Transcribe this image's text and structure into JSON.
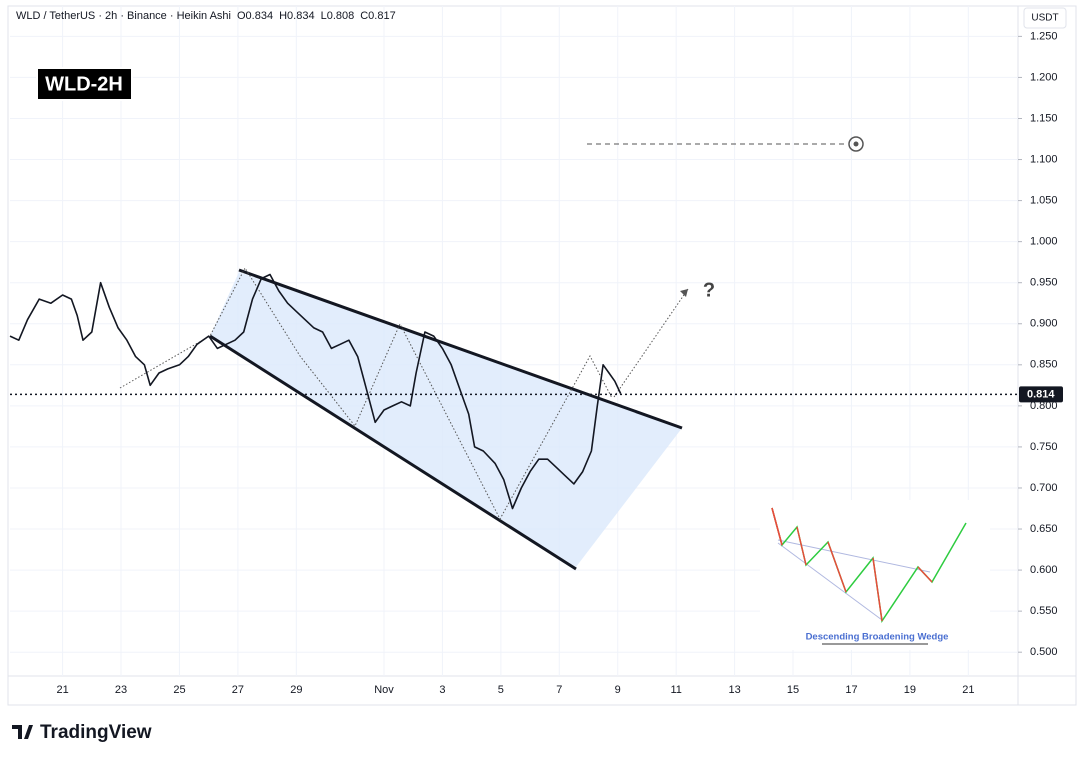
{
  "chart_data": {
    "type": "line",
    "header": {
      "symbol": "WLD / TetherUS · 2h · Binance · Heikin Ashi",
      "open": "O0.834",
      "high": "H0.834",
      "low": "L0.808",
      "close": "C0.817"
    },
    "badge": "WLD-2H",
    "currency": "USDT",
    "last_price": 0.814,
    "last_price_label": "0.814",
    "annotation": "?",
    "inset_title": "Descending Broadening Wedge",
    "brand": "TradingView",
    "color": "#131722",
    "xlim": [
      -1.8,
      32.7
    ],
    "ylim": [
      0.471,
      1.287
    ],
    "xticks": [
      {
        "value": 0,
        "label": "21"
      },
      {
        "value": 2,
        "label": "23"
      },
      {
        "value": 4,
        "label": "25"
      },
      {
        "value": 6,
        "label": "27"
      },
      {
        "value": 8,
        "label": "29"
      },
      {
        "value": 11,
        "label": "Nov"
      },
      {
        "value": 13,
        "label": "3"
      },
      {
        "value": 15,
        "label": "5"
      },
      {
        "value": 17,
        "label": "7"
      },
      {
        "value": 19,
        "label": "9"
      },
      {
        "value": 21,
        "label": "11"
      },
      {
        "value": 23,
        "label": "13"
      },
      {
        "value": 25,
        "label": "15"
      },
      {
        "value": 27,
        "label": "17"
      },
      {
        "value": 29,
        "label": "19"
      },
      {
        "value": 31,
        "label": "21"
      }
    ],
    "yticks": [
      {
        "value": 1.25,
        "label": "1.250"
      },
      {
        "value": 1.2,
        "label": "1.200"
      },
      {
        "value": 1.15,
        "label": "1.150"
      },
      {
        "value": 1.1,
        "label": "1.100"
      },
      {
        "value": 1.05,
        "label": "1.050"
      },
      {
        "value": 1,
        "label": "1.000"
      },
      {
        "value": 0.95,
        "label": "0.950"
      },
      {
        "value": 0.9,
        "label": "0.900"
      },
      {
        "value": 0.85,
        "label": "0.850"
      },
      {
        "value": 0.8,
        "label": "0.800"
      },
      {
        "value": 0.75,
        "label": "0.750"
      },
      {
        "value": 0.7,
        "label": "0.700"
      },
      {
        "value": 0.65,
        "label": "0.650"
      },
      {
        "value": 0.6,
        "label": "0.600"
      },
      {
        "value": 0.55,
        "label": "0.550"
      },
      {
        "value": 0.5,
        "label": "0.500"
      }
    ],
    "x": [
      -1.8,
      -1.5,
      -1.2,
      -0.8,
      -0.4,
      0,
      0.3,
      0.5,
      0.7,
      1,
      1.3,
      1.6,
      1.9,
      2.2,
      2.5,
      2.8,
      3,
      3.3,
      3.6,
      4,
      4.3,
      4.6,
      5,
      5.3,
      5.6,
      5.9,
      6.2,
      6.5,
      6.8,
      7.1,
      7.4,
      7.7,
      8,
      8.3,
      8.6,
      8.9,
      9.2,
      9.5,
      9.8,
      10.1,
      10.4,
      10.7,
      11,
      11.3,
      11.6,
      11.9,
      12.1,
      12.4,
      12.7,
      13,
      13.3,
      13.6,
      13.9,
      14.1,
      14.4,
      14.8,
      15.1,
      15.4,
      15.7,
      16,
      16.3,
      16.6,
      16.9,
      17.2,
      17.5,
      17.8,
      18.1,
      18.3,
      18.5,
      18.7,
      18.9,
      19.1
    ],
    "values": [
      0.885,
      0.88,
      0.905,
      0.93,
      0.925,
      0.935,
      0.93,
      0.91,
      0.88,
      0.89,
      0.95,
      0.92,
      0.895,
      0.88,
      0.86,
      0.85,
      0.825,
      0.84,
      0.845,
      0.85,
      0.86,
      0.875,
      0.885,
      0.87,
      0.875,
      0.88,
      0.89,
      0.93,
      0.955,
      0.96,
      0.94,
      0.925,
      0.915,
      0.905,
      0.895,
      0.89,
      0.87,
      0.875,
      0.88,
      0.86,
      0.82,
      0.78,
      0.795,
      0.8,
      0.805,
      0.8,
      0.84,
      0.89,
      0.885,
      0.87,
      0.85,
      0.82,
      0.79,
      0.75,
      0.745,
      0.73,
      0.71,
      0.675,
      0.7,
      0.72,
      0.735,
      0.735,
      0.725,
      0.715,
      0.705,
      0.72,
      0.745,
      0.8,
      0.85,
      0.84,
      0.83,
      0.815
    ]
  }
}
